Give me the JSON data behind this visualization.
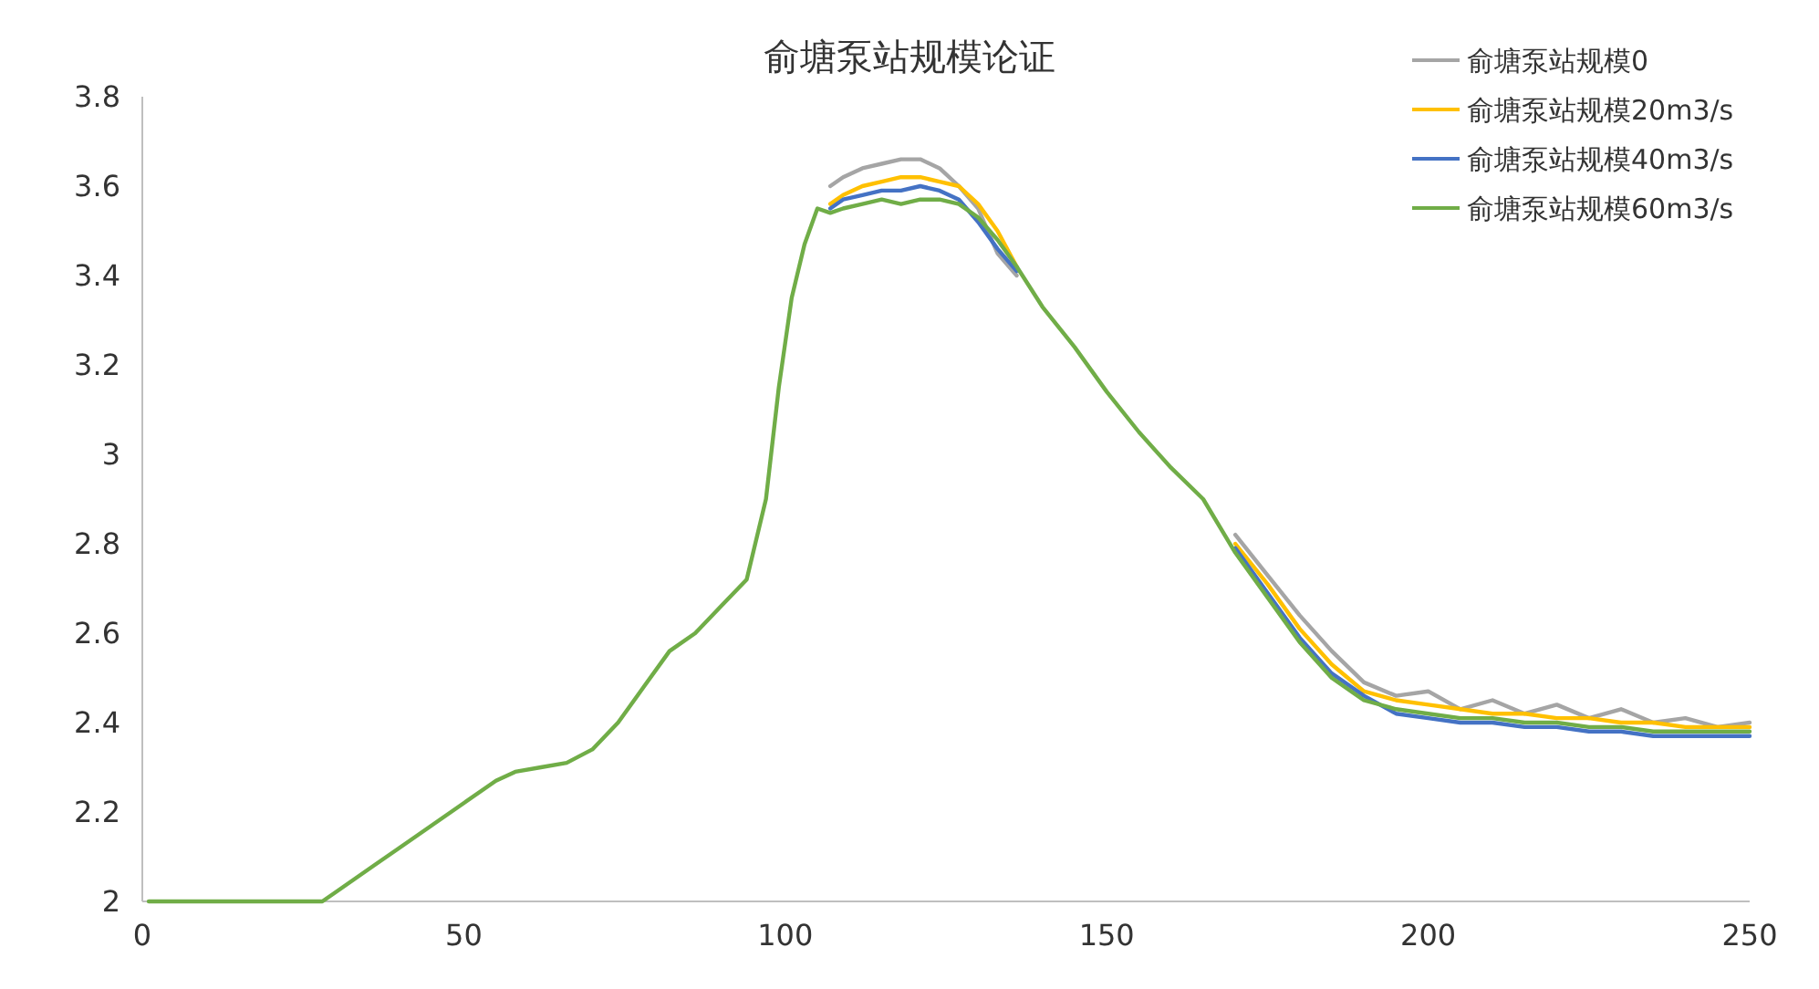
{
  "chart_data": {
    "type": "line",
    "title": "俞塘泵站规模论证",
    "legend": "top right",
    "grid": false,
    "xlim": [
      0,
      250
    ],
    "xticks": [
      0,
      50,
      100,
      150,
      200,
      250
    ],
    "ylim": [
      2,
      3.8
    ],
    "yticks": [
      2,
      2.2,
      2.4,
      2.6,
      2.8,
      3,
      3.2,
      3.4,
      3.6,
      3.8
    ],
    "x": [
      1,
      5,
      10,
      15,
      20,
      25,
      28,
      30,
      33,
      36,
      40,
      45,
      50,
      55,
      58,
      62,
      66,
      70,
      74,
      78,
      82,
      86,
      90,
      94,
      97,
      99,
      101,
      103,
      105,
      107,
      109,
      112,
      115,
      118,
      121,
      124,
      127,
      130,
      133,
      136,
      140,
      145,
      150,
      155,
      160,
      165,
      170,
      175,
      180,
      185,
      190,
      195,
      200,
      205,
      210,
      215,
      220,
      225,
      230,
      235,
      240,
      245,
      250
    ],
    "series": [
      {
        "name": "俞塘泵站规模0",
        "color": "#a5a5a5",
        "values": [
          null,
          null,
          null,
          null,
          null,
          null,
          null,
          null,
          null,
          null,
          null,
          null,
          null,
          null,
          null,
          null,
          null,
          null,
          null,
          null,
          null,
          null,
          null,
          null,
          null,
          null,
          null,
          null,
          null,
          3.6,
          3.62,
          3.64,
          3.65,
          3.66,
          3.66,
          3.64,
          3.6,
          3.55,
          3.45,
          3.4,
          null,
          null,
          null,
          null,
          null,
          null,
          2.82,
          2.73,
          2.64,
          2.56,
          2.49,
          2.46,
          2.47,
          2.43,
          2.45,
          2.42,
          2.44,
          2.41,
          2.43,
          2.4,
          2.41,
          2.39,
          2.4
        ]
      },
      {
        "name": "俞塘泵站规模20m3/s",
        "color": "#ffc000",
        "values": [
          null,
          null,
          null,
          null,
          null,
          null,
          null,
          null,
          null,
          null,
          null,
          null,
          null,
          null,
          null,
          null,
          null,
          null,
          null,
          null,
          null,
          null,
          null,
          null,
          null,
          null,
          null,
          null,
          null,
          3.56,
          3.58,
          3.6,
          3.61,
          3.62,
          3.62,
          3.61,
          3.6,
          3.56,
          3.5,
          3.42,
          null,
          null,
          null,
          null,
          null,
          null,
          2.8,
          2.71,
          2.61,
          2.53,
          2.47,
          2.45,
          2.44,
          2.43,
          2.42,
          2.42,
          2.41,
          2.41,
          2.4,
          2.4,
          2.39,
          2.39,
          2.39
        ]
      },
      {
        "name": "俞塘泵站规模40m3/s",
        "color": "#4472c4",
        "values": [
          null,
          null,
          null,
          null,
          null,
          null,
          null,
          null,
          null,
          null,
          null,
          null,
          null,
          null,
          null,
          null,
          null,
          null,
          null,
          null,
          null,
          null,
          null,
          null,
          null,
          null,
          null,
          null,
          null,
          3.55,
          3.57,
          3.58,
          3.59,
          3.59,
          3.6,
          3.59,
          3.57,
          3.52,
          3.46,
          3.41,
          null,
          null,
          null,
          null,
          null,
          null,
          2.79,
          2.69,
          2.59,
          2.51,
          2.46,
          2.42,
          2.41,
          2.4,
          2.4,
          2.39,
          2.39,
          2.38,
          2.38,
          2.37,
          2.37,
          2.37,
          2.37
        ]
      },
      {
        "name": "俞塘泵站规模60m3/s",
        "color": "#70ad47",
        "values": [
          2,
          2,
          2,
          2,
          2,
          2,
          2,
          2.02,
          2.05,
          2.08,
          2.12,
          2.17,
          2.22,
          2.27,
          2.29,
          2.3,
          2.31,
          2.34,
          2.4,
          2.48,
          2.56,
          2.6,
          2.66,
          2.72,
          2.9,
          3.15,
          3.35,
          3.47,
          3.55,
          3.54,
          3.55,
          3.56,
          3.57,
          3.56,
          3.57,
          3.57,
          3.56,
          3.53,
          3.48,
          3.42,
          3.33,
          3.24,
          3.14,
          3.05,
          2.97,
          2.9,
          2.78,
          2.68,
          2.58,
          2.5,
          2.45,
          2.43,
          2.42,
          2.41,
          2.41,
          2.4,
          2.4,
          2.39,
          2.39,
          2.38,
          2.38,
          2.38,
          2.38
        ]
      }
    ]
  }
}
